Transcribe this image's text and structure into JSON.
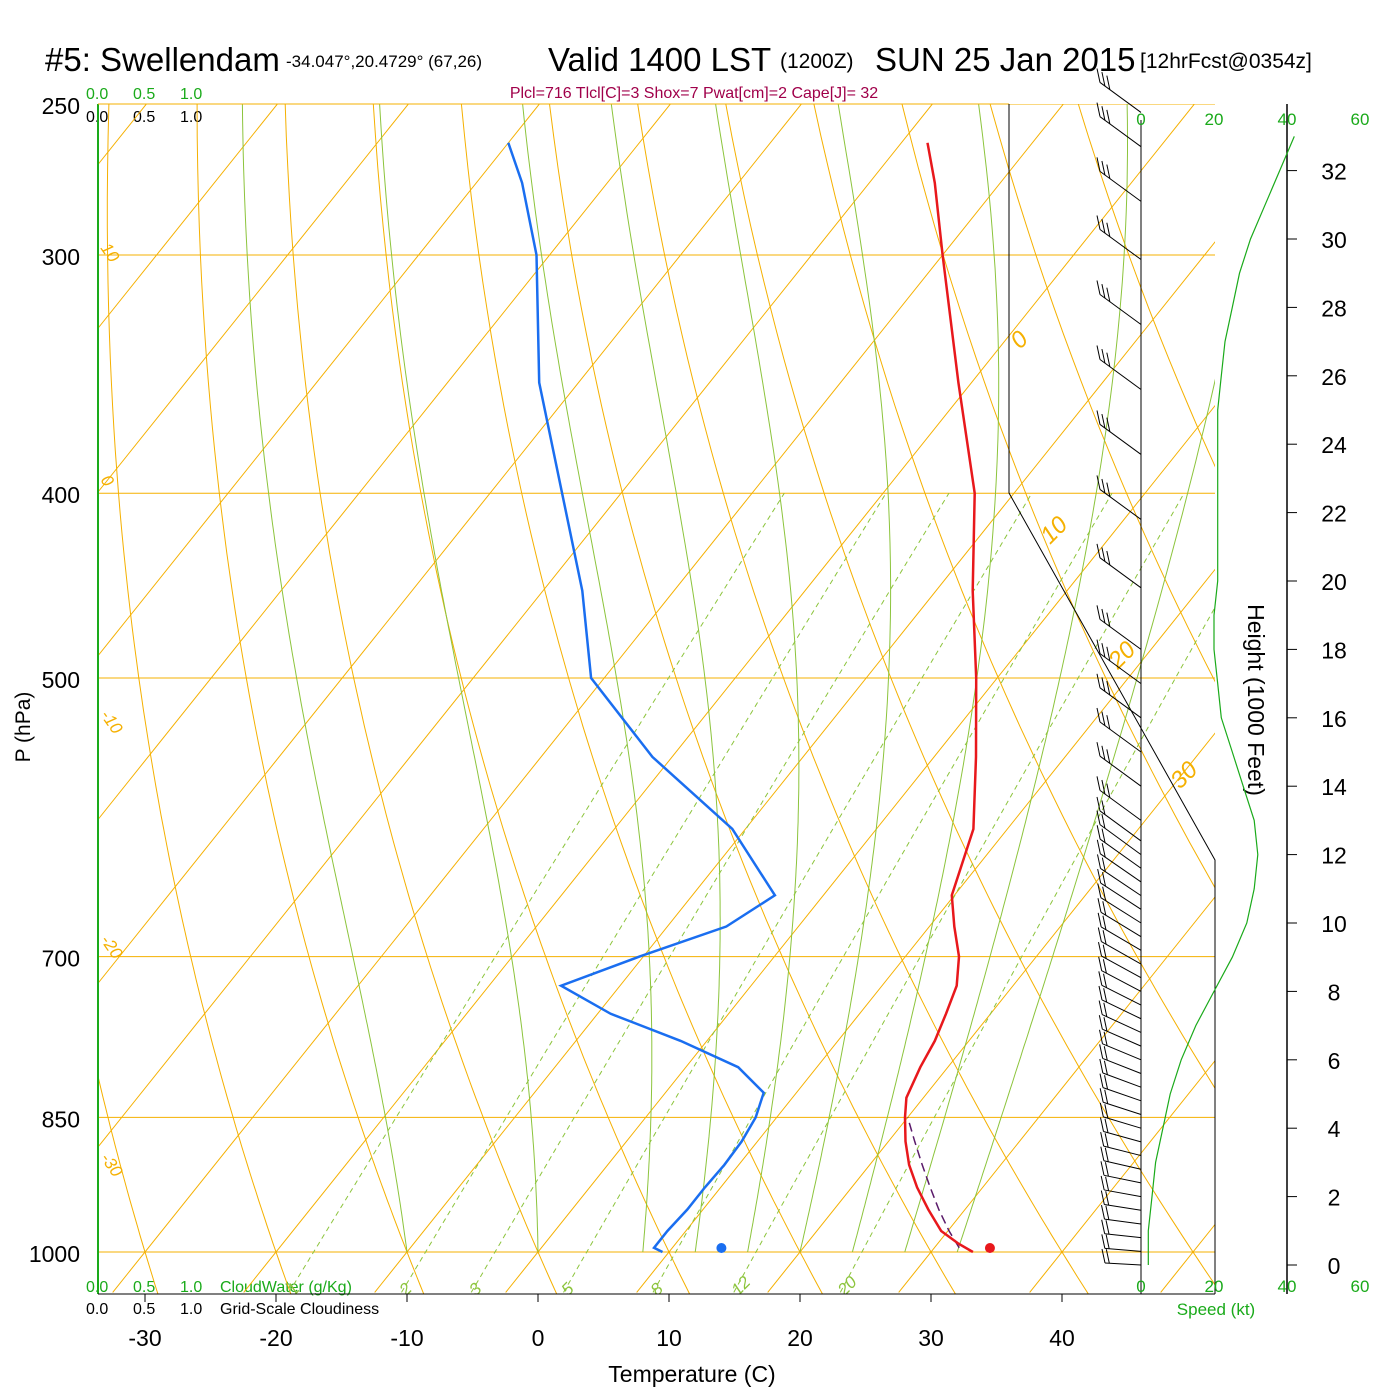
{
  "header": {
    "station": "#5: Swellendam",
    "coords": "-34.047°,20.4729° (67,26)",
    "valid": "Valid 1400 LST",
    "zulu": "(1200Z)",
    "date": "SUN 25 Jan 2015",
    "forecast": "[12hrFcst@0354z]"
  },
  "indices": "Plcl=716 Tlcl[C]=3 Shox=7 Pwat[cm]=2 Cape[J]= 32",
  "colors": {
    "temperature": "#e8181c",
    "dewpoint": "#1a6ef0",
    "isotherm": "#f5b000",
    "mixing_ratio": "#8cc43c",
    "speed": "#1aaa1a",
    "parcel": "#5a1a6a",
    "indices": "#a0004a"
  },
  "chart_data": {
    "type": "skew-t",
    "title": "#5: Swellendam",
    "xlabel": "Temperature (C)",
    "ylabel": "P (hPa)",
    "x_ticks": [
      -30,
      -20,
      -10,
      0,
      10,
      20,
      30,
      40
    ],
    "y_ticks": [
      1000,
      850,
      700,
      500,
      400,
      300,
      250
    ],
    "series": [
      {
        "name": "Temperature",
        "points": [
          [
            1000,
            33.2
          ],
          [
            990,
            31.6
          ],
          [
            975,
            29.5
          ],
          [
            950,
            27.2
          ],
          [
            925,
            25.0
          ],
          [
            900,
            23.0
          ],
          [
            875,
            21.3
          ],
          [
            850,
            19.8
          ],
          [
            830,
            18.7
          ],
          [
            800,
            17.9
          ],
          [
            775,
            17.4
          ],
          [
            750,
            16.6
          ],
          [
            725,
            15.7
          ],
          [
            700,
            14.1
          ],
          [
            675,
            11.9
          ],
          [
            650,
            9.8
          ],
          [
            600,
            7.4
          ],
          [
            550,
            3.2
          ],
          [
            500,
            -1.6
          ],
          [
            450,
            -7.2
          ],
          [
            400,
            -13.0
          ],
          [
            350,
            -21.0
          ],
          [
            300,
            -30.0
          ],
          [
            275,
            -35.0
          ],
          [
            262,
            -38.0
          ]
        ]
      },
      {
        "name": "Dewpoint",
        "points": [
          [
            1000,
            9.5
          ],
          [
            995,
            8.6
          ],
          [
            975,
            8.6
          ],
          [
            950,
            8.8
          ],
          [
            925,
            8.8
          ],
          [
            900,
            8.9
          ],
          [
            875,
            8.8
          ],
          [
            850,
            8.4
          ],
          [
            825,
            7.5
          ],
          [
            800,
            4.0
          ],
          [
            775,
            -2.0
          ],
          [
            750,
            -9.0
          ],
          [
            725,
            -14.5
          ],
          [
            700,
            -10.3
          ],
          [
            675,
            -5.5
          ],
          [
            650,
            -3.7
          ],
          [
            600,
            -11.0
          ],
          [
            550,
            -21.5
          ],
          [
            500,
            -31.0
          ],
          [
            450,
            -37.0
          ],
          [
            400,
            -44.5
          ],
          [
            350,
            -53.0
          ],
          [
            300,
            -61.0
          ],
          [
            275,
            -66.5
          ],
          [
            262,
            -70.0
          ]
        ]
      },
      {
        "name": "Parcel",
        "points": [
          [
            995,
            31.9
          ],
          [
            975,
            30.1
          ],
          [
            950,
            28.0
          ],
          [
            925,
            26.0
          ],
          [
            900,
            24.0
          ],
          [
            875,
            22.0
          ],
          [
            850,
            20.0
          ]
        ]
      }
    ],
    "surface": {
      "temperature": 34.5,
      "dewpoint": 14.0
    },
    "dry_adiabats": [
      -50,
      -40,
      -30,
      -20,
      -10,
      0,
      10,
      20,
      30,
      40,
      50,
      60,
      70,
      80,
      90
    ],
    "moist_adiabats": [
      -10,
      0,
      8,
      12,
      16,
      20,
      24,
      28,
      32
    ],
    "mixing_ratio_lines": [
      1,
      2,
      3,
      5,
      8,
      12,
      20
    ],
    "isotherm_labels": [
      10,
      0,
      -10,
      -20,
      -30
    ],
    "isotherm_labels_right": [
      0,
      10,
      20,
      30
    ],
    "height_axis": {
      "label": "Height (1000 Feet)",
      "ticks": [
        0,
        2,
        4,
        6,
        8,
        10,
        12,
        14,
        16,
        18,
        20,
        22,
        24,
        26,
        28,
        30,
        32
      ]
    },
    "speed_axis": {
      "label": "Speed (kt)",
      "ticks": [
        0,
        20,
        40,
        60
      ],
      "profile": [
        [
          0,
          2
        ],
        [
          1,
          2
        ],
        [
          2,
          3
        ],
        [
          3,
          4
        ],
        [
          4,
          6
        ],
        [
          5,
          8
        ],
        [
          6,
          11
        ],
        [
          7,
          15
        ],
        [
          8,
          20
        ],
        [
          9,
          25
        ],
        [
          10,
          29
        ],
        [
          11,
          31
        ],
        [
          12,
          32
        ],
        [
          13,
          31
        ],
        [
          14,
          28
        ],
        [
          15,
          25
        ],
        [
          16,
          22
        ],
        [
          17,
          21
        ],
        [
          18,
          20
        ],
        [
          19,
          20
        ],
        [
          20,
          21
        ],
        [
          21,
          21
        ],
        [
          22,
          21
        ],
        [
          23,
          21
        ],
        [
          24,
          21
        ],
        [
          25,
          21
        ],
        [
          26,
          22
        ],
        [
          27,
          23
        ],
        [
          28,
          25
        ],
        [
          29,
          27
        ],
        [
          30,
          30
        ],
        [
          31,
          34
        ],
        [
          32,
          38
        ],
        [
          33,
          42
        ]
      ]
    },
    "wind_barbs": [
      {
        "h": 0,
        "kt": 20
      },
      {
        "h": 0.4,
        "kt": 20
      },
      {
        "h": 0.8,
        "kt": 20
      },
      {
        "h": 1.2,
        "kt": 20
      },
      {
        "h": 1.6,
        "kt": 20
      },
      {
        "h": 2.0,
        "kt": 20
      },
      {
        "h": 2.4,
        "kt": 20
      },
      {
        "h": 2.8,
        "kt": 20
      },
      {
        "h": 3.2,
        "kt": 20
      },
      {
        "h": 3.6,
        "kt": 20
      },
      {
        "h": 4.0,
        "kt": 20
      },
      {
        "h": 4.4,
        "kt": 20
      },
      {
        "h": 4.8,
        "kt": 25
      },
      {
        "h": 5.2,
        "kt": 25
      },
      {
        "h": 5.6,
        "kt": 25
      },
      {
        "h": 6.0,
        "kt": 25
      },
      {
        "h": 6.4,
        "kt": 25
      },
      {
        "h": 6.8,
        "kt": 25
      },
      {
        "h": 7.2,
        "kt": 25
      },
      {
        "h": 7.6,
        "kt": 25
      },
      {
        "h": 8.0,
        "kt": 25
      },
      {
        "h": 8.4,
        "kt": 25
      },
      {
        "h": 8.8,
        "kt": 25
      },
      {
        "h": 9.2,
        "kt": 25
      },
      {
        "h": 9.6,
        "kt": 25
      },
      {
        "h": 10.0,
        "kt": 25
      },
      {
        "h": 10.4,
        "kt": 25
      },
      {
        "h": 10.8,
        "kt": 25
      },
      {
        "h": 11.2,
        "kt": 25
      },
      {
        "h": 11.6,
        "kt": 25
      },
      {
        "h": 12.0,
        "kt": 25
      },
      {
        "h": 12.4,
        "kt": 25
      },
      {
        "h": 13.0,
        "kt": 30
      },
      {
        "h": 14.0,
        "kt": 30
      },
      {
        "h": 15.0,
        "kt": 30
      },
      {
        "h": 16.0,
        "kt": 30
      },
      {
        "h": 17.0,
        "kt": 30
      },
      {
        "h": 18.0,
        "kt": 30
      },
      {
        "h": 19.8,
        "kt": 35
      },
      {
        "h": 21.8,
        "kt": 35
      },
      {
        "h": 23.7,
        "kt": 35
      },
      {
        "h": 25.6,
        "kt": 35
      },
      {
        "h": 27.5,
        "kt": 35
      },
      {
        "h": 29.4,
        "kt": 35
      },
      {
        "h": 31.1,
        "kt": 35
      },
      {
        "h": 32.7,
        "kt": 35
      },
      {
        "h": 33.7,
        "kt": 35
      }
    ]
  },
  "scales": {
    "cloud_ticks": [
      "0.0",
      "0.5",
      "1.0"
    ],
    "cloud_water_label": "CloudWater (g/Kg)",
    "cloudiness_label": "Grid-Scale Cloudiness"
  }
}
